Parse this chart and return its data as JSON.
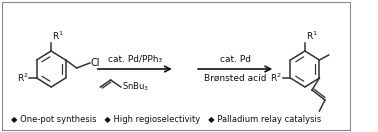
{
  "bg_color": "#ffffff",
  "border_color": "#888888",
  "line_color": "#333333",
  "text_color": "#111111",
  "arrow_color": "#111111",
  "footer_text": "◆ One-pot synthesis   ◆ High regioselectivity   ◆ Palladium relay catalysis",
  "reagent1_line1": "cat. Pd/PPh₃",
  "reagent1_line2": "SnBu₃",
  "reagent2_line1": "cat. Pd",
  "reagent2_line2": "Brønsted acid",
  "footer_fontsize": 6.0,
  "label_fontsize": 6.5,
  "struct_fontsize": 6.5,
  "lw_mol": 1.1
}
